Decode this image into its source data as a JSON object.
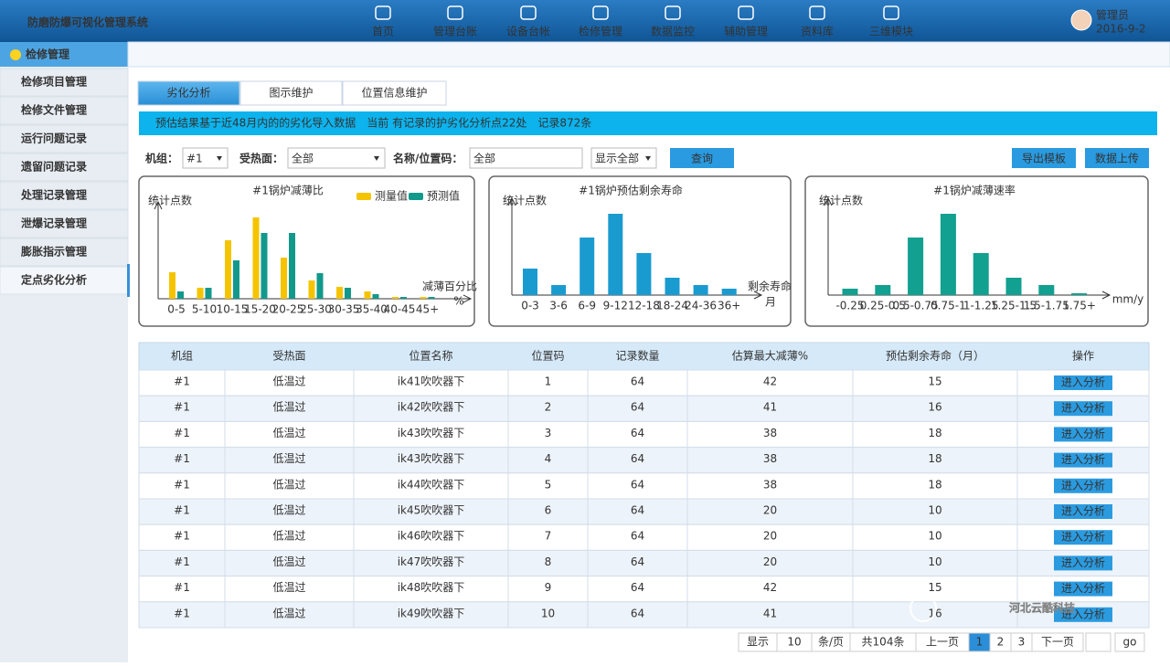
{
  "header": {
    "title": "防磨防爆可视化管理系统",
    "nav": [
      "首页",
      "管理台账",
      "设备台帐",
      "检修管理",
      "数据监控",
      "辅助管理",
      "资料库",
      "三维模块"
    ],
    "user": "管理员",
    "date": "2016-9-2"
  },
  "sidebar": {
    "section": "检修管理",
    "items": [
      "检修项目管理",
      "检修文件管理",
      "运行问题记录",
      "遗留问题记录",
      "处理记录管理",
      "泄爆记录管理",
      "膨胀指示管理",
      "定点劣化分析"
    ],
    "active": 7
  },
  "tabs": {
    "items": [
      "劣化分析",
      "图示维护",
      "位置信息维护"
    ],
    "active": 0
  },
  "notice": "预估结果基于近48月内的的劣化导入数据　当前 有记录的护劣化分析点22处　记录872条",
  "filters": {
    "unit_label": "机组：",
    "unit_value": "#1",
    "surface_label": "受热面：",
    "surface_value": "全部",
    "name_label": "名称/位置码：",
    "name_value": "全部",
    "display_value": "显示全部",
    "query": "查询",
    "export": "导出模板",
    "upload": "数据上传"
  },
  "chart_data": [
    {
      "type": "bar",
      "title": "#1锅炉减薄比",
      "y_label": "统计点数",
      "x_label": "减薄百分比",
      "x_unit": "%",
      "categories": [
        "0-5",
        "5-10",
        "10-15",
        "15-20",
        "20-25",
        "25-30",
        "30-35",
        "35-40",
        "40-45",
        "45+"
      ],
      "ylim": [
        0,
        100
      ],
      "series": [
        {
          "name": "测量值",
          "color": "#f5c400",
          "values": [
            29,
            12,
            64,
            89,
            45,
            20,
            13,
            8,
            2,
            2
          ]
        },
        {
          "name": "预测值",
          "color": "#12998b",
          "values": [
            8,
            12,
            42,
            72,
            72,
            28,
            12,
            5,
            2,
            2
          ]
        }
      ]
    },
    {
      "type": "bar",
      "title": "#1锅炉预估剩余寿命",
      "y_label": "统计点数",
      "x_label": "剩余寿命",
      "x_unit": "月",
      "categories": [
        "0-3",
        "3-6",
        "6-9",
        "9-12",
        "12-18",
        "18-24",
        "24-36",
        "36+"
      ],
      "ylim": [
        0,
        100
      ],
      "color": "#1a9bd0",
      "values": [
        29,
        11,
        63,
        89,
        46,
        19,
        11,
        7
      ]
    },
    {
      "type": "bar",
      "title": "#1锅炉减薄速率",
      "y_label": "统计点数",
      "x_unit": "mm/y",
      "categories": [
        "-0.25",
        "0.25-0.5",
        "0.5-0.75",
        "0.75-1",
        "1-1.25",
        "1.25-1.5",
        "1.5-1.75",
        "1.75+"
      ],
      "ylim": [
        0,
        100
      ],
      "color": "#12a090",
      "values": [
        7,
        11,
        63,
        89,
        46,
        19,
        11,
        2
      ]
    }
  ],
  "table": {
    "headers": [
      "机组",
      "受热面",
      "位置名称",
      "位置码",
      "记录数量",
      "估算最大减薄%",
      "预估剩余寿命（月）",
      "操作"
    ],
    "rows": [
      [
        "#1",
        "低温过",
        "ik41吹吹器下",
        1,
        64,
        42,
        15,
        "进入分析"
      ],
      [
        "#1",
        "低温过",
        "ik42吹吹器下",
        2,
        64,
        41,
        16,
        "进入分析"
      ],
      [
        "#1",
        "低温过",
        "ik43吹吹器下",
        3,
        64,
        38,
        18,
        "进入分析"
      ],
      [
        "#1",
        "低温过",
        "ik43吹吹器下",
        4,
        64,
        38,
        18,
        "进入分析"
      ],
      [
        "#1",
        "低温过",
        "ik44吹吹器下",
        5,
        64,
        38,
        18,
        "进入分析"
      ],
      [
        "#1",
        "低温过",
        "ik45吹吹器下",
        6,
        64,
        20,
        10,
        "进入分析"
      ],
      [
        "#1",
        "低温过",
        "ik46吹吹器下",
        7,
        64,
        20,
        10,
        "进入分析"
      ],
      [
        "#1",
        "低温过",
        "ik47吹吹器下",
        8,
        64,
        20,
        10,
        "进入分析"
      ],
      [
        "#1",
        "低温过",
        "ik48吹吹器下",
        9,
        64,
        42,
        15,
        "进入分析"
      ],
      [
        "#1",
        "低温过",
        "ik49吹吹器下",
        10,
        64,
        41,
        16,
        "进入分析"
      ]
    ],
    "value_colors": [
      "#f06a1e",
      "#f06a1e",
      "#f06a1e",
      "#f06a1e",
      "#f06a1e",
      "#333333",
      "#333333",
      "#333333",
      "#f06a1e",
      "#f06a1e"
    ]
  },
  "pagination": {
    "show": "显示",
    "page_size": 10,
    "per_page": "条/页",
    "total": "共104条",
    "prev": "上一页",
    "pages": [
      1,
      2,
      3
    ],
    "current": 0,
    "next": "下一页",
    "go": "go"
  },
  "watermark": "河北云酷科技"
}
